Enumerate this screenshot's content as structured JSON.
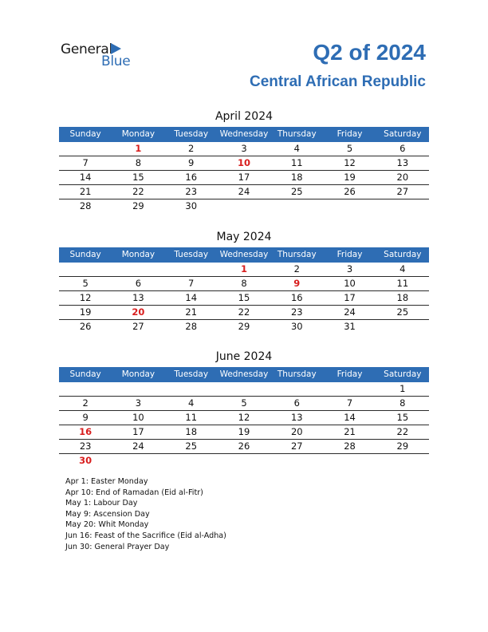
{
  "logo": {
    "general": "General",
    "blue": "Blue"
  },
  "title": "Q2 of 2024",
  "country": "Central African Republic",
  "weekdays": [
    "Sunday",
    "Monday",
    "Tuesday",
    "Wednesday",
    "Thursday",
    "Friday",
    "Saturday"
  ],
  "months": [
    {
      "name": "April 2024",
      "weeks": [
        [
          "",
          "1",
          "2",
          "3",
          "4",
          "5",
          "6"
        ],
        [
          "7",
          "8",
          "9",
          "10",
          "11",
          "12",
          "13"
        ],
        [
          "14",
          "15",
          "16",
          "17",
          "18",
          "19",
          "20"
        ],
        [
          "21",
          "22",
          "23",
          "24",
          "25",
          "26",
          "27"
        ],
        [
          "28",
          "29",
          "30",
          "",
          "",
          "",
          ""
        ]
      ],
      "holidays": [
        "1",
        "10"
      ]
    },
    {
      "name": "May 2024",
      "weeks": [
        [
          "",
          "",
          "",
          "1",
          "2",
          "3",
          "4"
        ],
        [
          "5",
          "6",
          "7",
          "8",
          "9",
          "10",
          "11"
        ],
        [
          "12",
          "13",
          "14",
          "15",
          "16",
          "17",
          "18"
        ],
        [
          "19",
          "20",
          "21",
          "22",
          "23",
          "24",
          "25"
        ],
        [
          "26",
          "27",
          "28",
          "29",
          "30",
          "31",
          ""
        ]
      ],
      "holidays": [
        "1",
        "9",
        "20"
      ]
    },
    {
      "name": "June 2024",
      "weeks": [
        [
          "",
          "",
          "",
          "",
          "",
          "",
          "1"
        ],
        [
          "2",
          "3",
          "4",
          "5",
          "6",
          "7",
          "8"
        ],
        [
          "9",
          "10",
          "11",
          "12",
          "13",
          "14",
          "15"
        ],
        [
          "16",
          "17",
          "18",
          "19",
          "20",
          "21",
          "22"
        ],
        [
          "23",
          "24",
          "25",
          "26",
          "27",
          "28",
          "29"
        ],
        [
          "30",
          "",
          "",
          "",
          "",
          "",
          ""
        ]
      ],
      "holidays": [
        "16",
        "30"
      ]
    }
  ],
  "holiday_notes": [
    "Apr 1: Easter Monday",
    "Apr 10: End of Ramadan (Eid al-Fitr)",
    "May 1: Labour Day",
    "May 9: Ascension Day",
    "May 20: Whit Monday",
    "Jun 16: Feast of the Sacrifice (Eid al-Adha)",
    "Jun 30: General Prayer Day"
  ],
  "colors": {
    "accent": "#2e6db4",
    "holiday": "#d81e1e"
  }
}
